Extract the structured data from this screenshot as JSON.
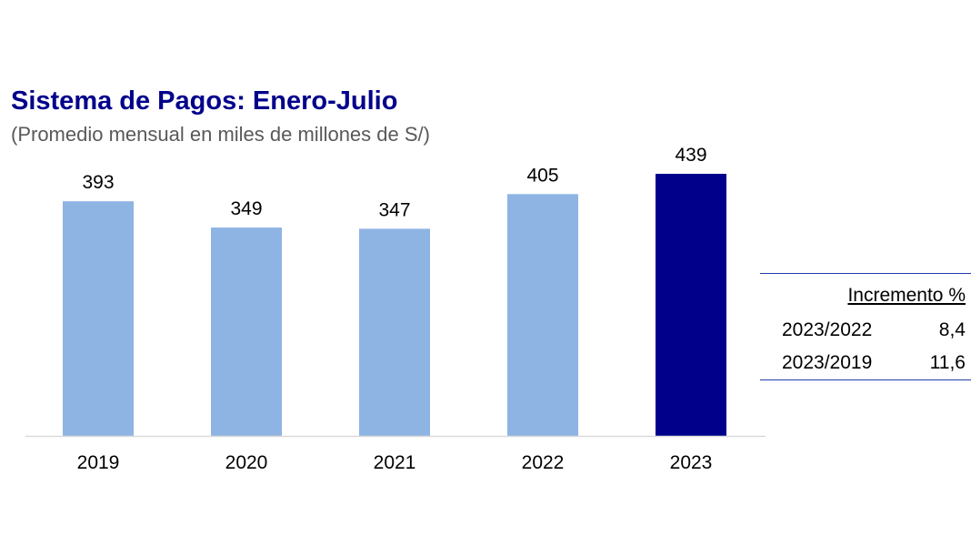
{
  "colors": {
    "title": "#00008B",
    "subtitle": "#595959",
    "bar_default": "#8EB4E3",
    "bar_highlight": "#00008B",
    "axis": "#D9D9D9",
    "table_rule": "#1F3FAA"
  },
  "chart_data": {
    "type": "bar",
    "title": "Sistema de Pagos: Enero-Julio",
    "subtitle": "(Promedio mensual en miles de millones de S/)",
    "categories": [
      "2019",
      "2020",
      "2021",
      "2022",
      "2023"
    ],
    "values": [
      393,
      349,
      347,
      405,
      439
    ],
    "highlight": "2023",
    "xlabel": "",
    "ylabel": "",
    "grid": false,
    "data_labels": true
  },
  "increment_table": {
    "header": "Incremento %",
    "rows": [
      {
        "period": "2023/2022",
        "value": "8,4"
      },
      {
        "period": "2023/2019",
        "value": "11,6"
      }
    ]
  }
}
